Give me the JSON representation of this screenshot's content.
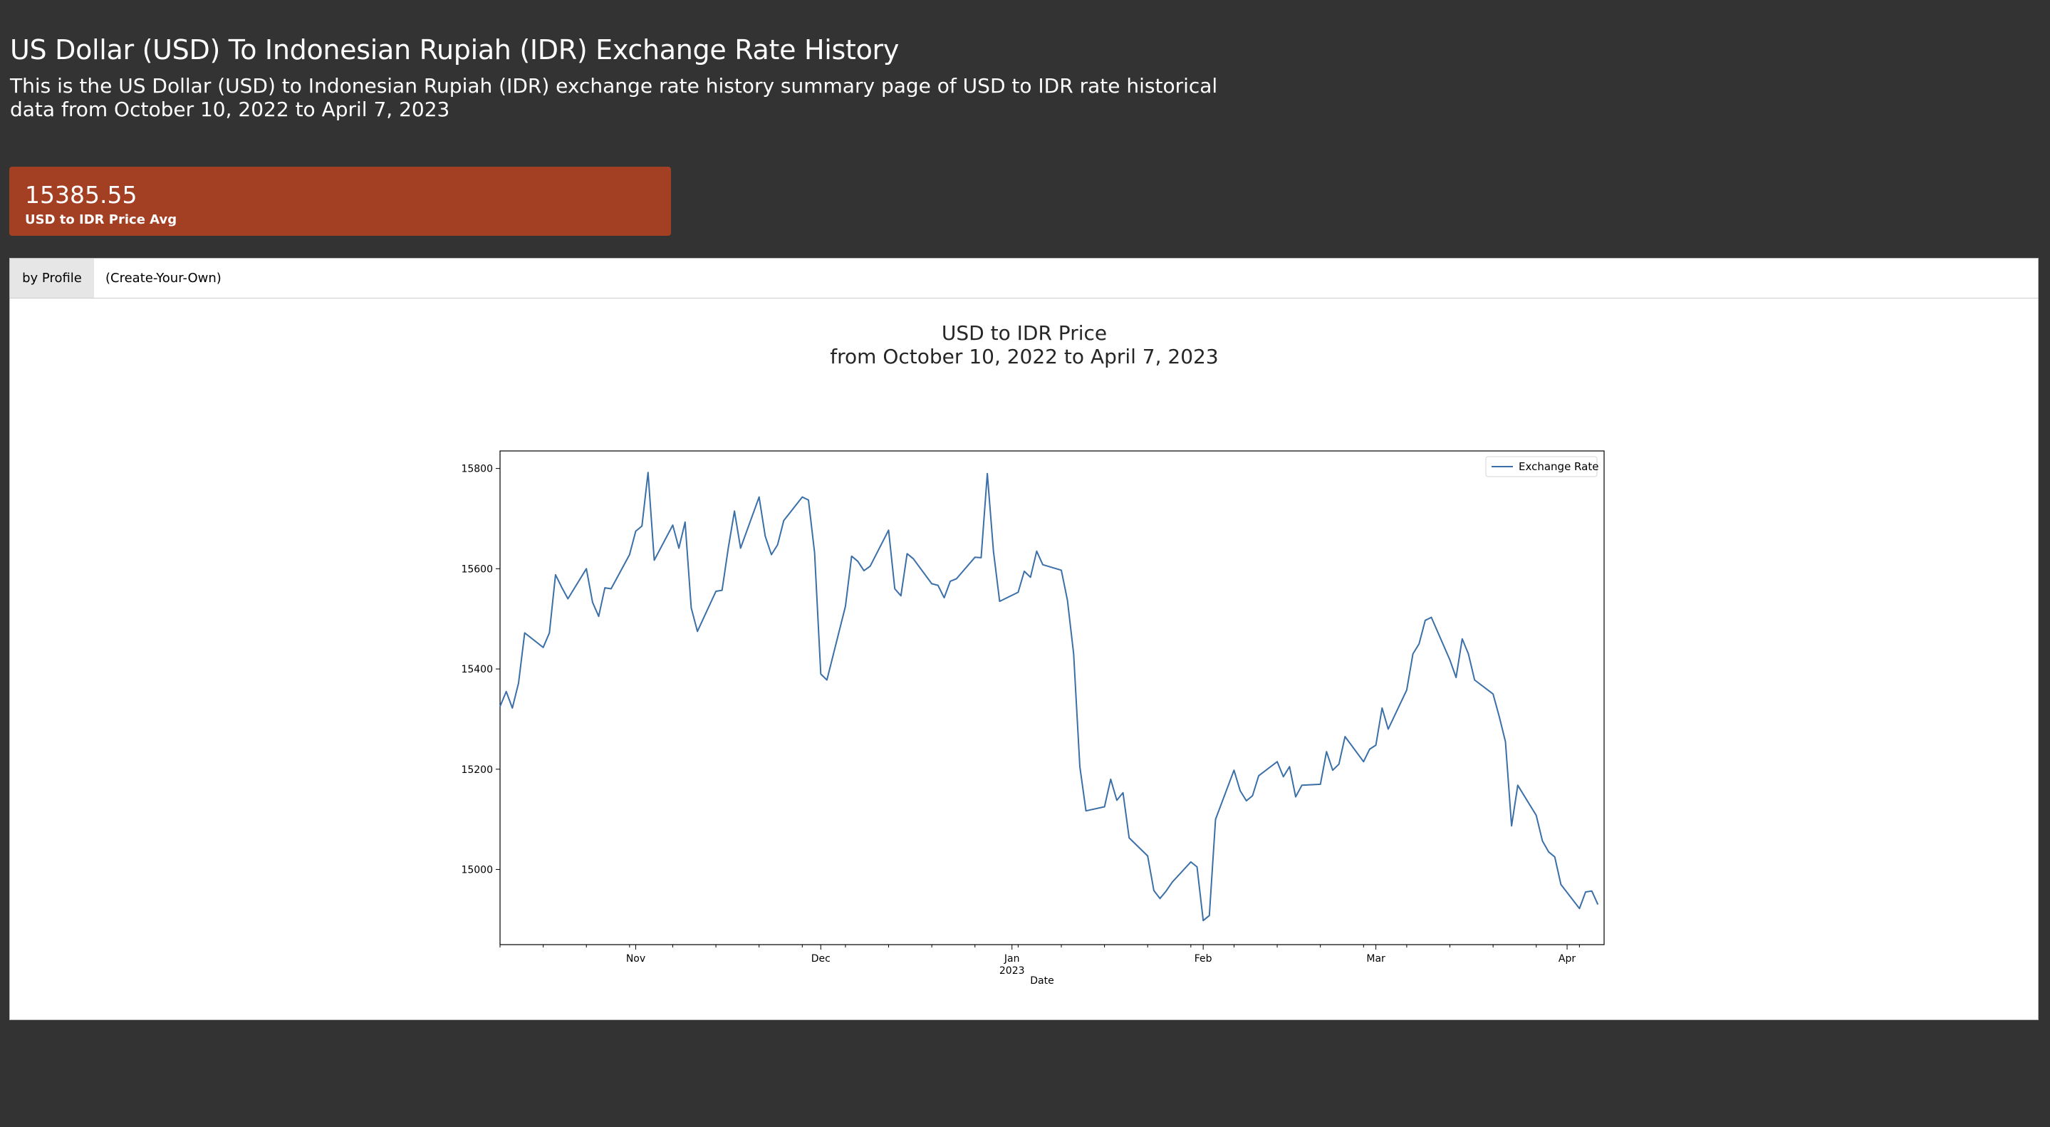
{
  "header": {
    "title": "US Dollar (USD) To Indonesian Rupiah (IDR) Exchange Rate History",
    "subtitle": "This is the US Dollar (USD) to Indonesian Rupiah (IDR) exchange rate history summary page of USD to IDR rate historical data from October 10, 2022 to April 7, 2023"
  },
  "stat": {
    "value": "15385.55",
    "label": "USD to IDR Price Avg"
  },
  "tabs": [
    {
      "label": "by Profile",
      "active": true
    },
    {
      "label": "(Create-Your-Own)",
      "active": false
    }
  ],
  "colors": {
    "page_bg": "#333333",
    "card_accent": "#a33f22",
    "line": "#3a6fa8"
  },
  "chart_data": {
    "type": "line",
    "title": [
      "USD to IDR Price",
      "from October 10, 2022 to April 7, 2023"
    ],
    "xlabel": "Date",
    "ylabel": "",
    "x_range": [
      "2022-10-10",
      "2023-04-07"
    ],
    "ylim": [
      14850,
      15835
    ],
    "y_ticks": [
      15000,
      15200,
      15400,
      15600,
      15800
    ],
    "x_ticks": [
      {
        "date": "2022-11-01",
        "label": "Nov"
      },
      {
        "date": "2022-12-01",
        "label": "Dec"
      },
      {
        "date": "2023-01-01",
        "label": "Jan",
        "sublabel": "2023"
      },
      {
        "date": "2023-02-01",
        "label": "Feb"
      },
      {
        "date": "2023-03-01",
        "label": "Mar"
      },
      {
        "date": "2023-04-01",
        "label": "Apr"
      }
    ],
    "legend": {
      "label": "Exchange Rate",
      "position": "top-right"
    },
    "series": [
      {
        "name": "Exchange Rate",
        "points": [
          [
            "2022-10-10",
            15325
          ],
          [
            "2022-10-11",
            15355
          ],
          [
            "2022-10-12",
            15322
          ],
          [
            "2022-10-13",
            15372
          ],
          [
            "2022-10-14",
            15472
          ],
          [
            "2022-10-17",
            15443
          ],
          [
            "2022-10-18",
            15472
          ],
          [
            "2022-10-19",
            15588
          ],
          [
            "2022-10-20",
            15563
          ],
          [
            "2022-10-21",
            15540
          ],
          [
            "2022-10-24",
            15600
          ],
          [
            "2022-10-25",
            15533
          ],
          [
            "2022-10-26",
            15505
          ],
          [
            "2022-10-27",
            15562
          ],
          [
            "2022-10-28",
            15560
          ],
          [
            "2022-10-31",
            15628
          ],
          [
            "2022-11-01",
            15675
          ],
          [
            "2022-11-02",
            15685
          ],
          [
            "2022-11-03",
            15792
          ],
          [
            "2022-11-04",
            15617
          ],
          [
            "2022-11-07",
            15687
          ],
          [
            "2022-11-08",
            15641
          ],
          [
            "2022-11-09",
            15693
          ],
          [
            "2022-11-10",
            15522
          ],
          [
            "2022-11-11",
            15475
          ],
          [
            "2022-11-14",
            15555
          ],
          [
            "2022-11-15",
            15557
          ],
          [
            "2022-11-16",
            15641
          ],
          [
            "2022-11-17",
            15715
          ],
          [
            "2022-11-18",
            15641
          ],
          [
            "2022-11-21",
            15743
          ],
          [
            "2022-11-22",
            15665
          ],
          [
            "2022-11-23",
            15628
          ],
          [
            "2022-11-24",
            15648
          ],
          [
            "2022-11-25",
            15696
          ],
          [
            "2022-11-28",
            15743
          ],
          [
            "2022-11-29",
            15737
          ],
          [
            "2022-11-30",
            15632
          ],
          [
            "2022-12-01",
            15390
          ],
          [
            "2022-12-02",
            15378
          ],
          [
            "2022-12-05",
            15525
          ],
          [
            "2022-12-06",
            15625
          ],
          [
            "2022-12-07",
            15615
          ],
          [
            "2022-12-08",
            15596
          ],
          [
            "2022-12-09",
            15605
          ],
          [
            "2022-12-12",
            15677
          ],
          [
            "2022-12-13",
            15560
          ],
          [
            "2022-12-14",
            15546
          ],
          [
            "2022-12-15",
            15630
          ],
          [
            "2022-12-16",
            15620
          ],
          [
            "2022-12-19",
            15570
          ],
          [
            "2022-12-20",
            15567
          ],
          [
            "2022-12-21",
            15542
          ],
          [
            "2022-12-22",
            15575
          ],
          [
            "2022-12-23",
            15580
          ],
          [
            "2022-12-26",
            15623
          ],
          [
            "2022-12-27",
            15622
          ],
          [
            "2022-12-28",
            15790
          ],
          [
            "2022-12-29",
            15635
          ],
          [
            "2022-12-30",
            15535
          ],
          [
            "2023-01-02",
            15553
          ],
          [
            "2023-01-03",
            15595
          ],
          [
            "2023-01-04",
            15583
          ],
          [
            "2023-01-05",
            15635
          ],
          [
            "2023-01-06",
            15608
          ],
          [
            "2023-01-09",
            15597
          ],
          [
            "2023-01-10",
            15537
          ],
          [
            "2023-01-11",
            15430
          ],
          [
            "2023-01-12",
            15205
          ],
          [
            "2023-01-13",
            15117
          ],
          [
            "2023-01-16",
            15125
          ],
          [
            "2023-01-17",
            15180
          ],
          [
            "2023-01-18",
            15138
          ],
          [
            "2023-01-19",
            15153
          ],
          [
            "2023-01-20",
            15063
          ],
          [
            "2023-01-23",
            15027
          ],
          [
            "2023-01-24",
            14958
          ],
          [
            "2023-01-25",
            14942
          ],
          [
            "2023-01-26",
            14957
          ],
          [
            "2023-01-27",
            14975
          ],
          [
            "2023-01-30",
            15015
          ],
          [
            "2023-01-31",
            15005
          ],
          [
            "2023-02-01",
            14898
          ],
          [
            "2023-02-02",
            14908
          ],
          [
            "2023-02-03",
            15100
          ],
          [
            "2023-02-06",
            15198
          ],
          [
            "2023-02-07",
            15157
          ],
          [
            "2023-02-08",
            15137
          ],
          [
            "2023-02-09",
            15147
          ],
          [
            "2023-02-10",
            15187
          ],
          [
            "2023-02-13",
            15215
          ],
          [
            "2023-02-14",
            15185
          ],
          [
            "2023-02-15",
            15205
          ],
          [
            "2023-02-16",
            15145
          ],
          [
            "2023-02-17",
            15168
          ],
          [
            "2023-02-20",
            15170
          ],
          [
            "2023-02-21",
            15235
          ],
          [
            "2023-02-22",
            15198
          ],
          [
            "2023-02-23",
            15210
          ],
          [
            "2023-02-24",
            15265
          ],
          [
            "2023-02-27",
            15215
          ],
          [
            "2023-02-28",
            15240
          ],
          [
            "2023-03-01",
            15248
          ],
          [
            "2023-03-02",
            15322
          ],
          [
            "2023-03-03",
            15280
          ],
          [
            "2023-03-06",
            15358
          ],
          [
            "2023-03-07",
            15430
          ],
          [
            "2023-03-08",
            15450
          ],
          [
            "2023-03-09",
            15497
          ],
          [
            "2023-03-10",
            15503
          ],
          [
            "2023-03-13",
            15418
          ],
          [
            "2023-03-14",
            15383
          ],
          [
            "2023-03-15",
            15460
          ],
          [
            "2023-03-16",
            15430
          ],
          [
            "2023-03-17",
            15378
          ],
          [
            "2023-03-20",
            15350
          ],
          [
            "2023-03-21",
            15305
          ],
          [
            "2023-03-22",
            15255
          ],
          [
            "2023-03-23",
            15087
          ],
          [
            "2023-03-24",
            15168
          ],
          [
            "2023-03-27",
            15108
          ],
          [
            "2023-03-28",
            15057
          ],
          [
            "2023-03-29",
            15035
          ],
          [
            "2023-03-30",
            15025
          ],
          [
            "2023-03-31",
            14970
          ],
          [
            "2023-04-03",
            14922
          ],
          [
            "2023-04-04",
            14955
          ],
          [
            "2023-04-05",
            14957
          ],
          [
            "2023-04-06",
            14930
          ]
        ]
      }
    ]
  }
}
